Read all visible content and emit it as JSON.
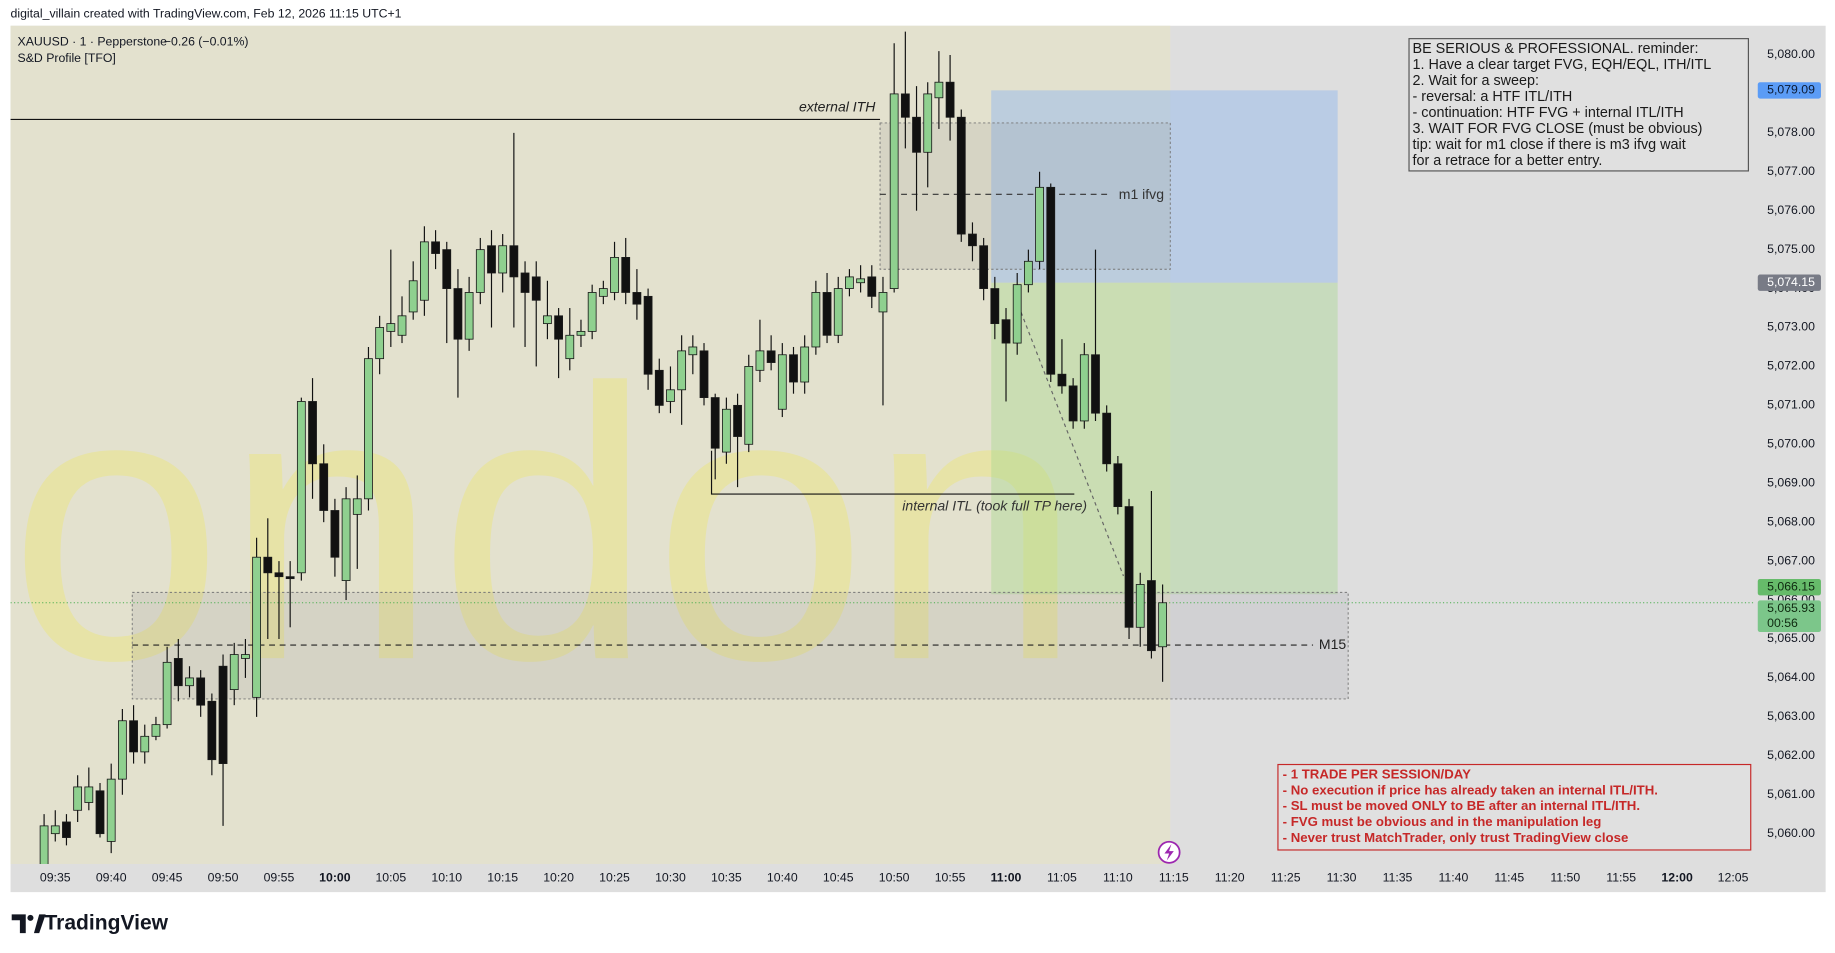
{
  "header": {
    "credit": "digital_villain created with TradingView.com, Feb 12, 2026 11:15 UTC+1",
    "brand": "TradingView"
  },
  "chart_data": {
    "type": "candlestick",
    "title": "XAUUSD · 1 · Pepperstone",
    "change": "−0.26 (−0.01%)",
    "indicator": "S&D Profile [TFO]",
    "watermark": "London",
    "up_color": "#8fd08f",
    "down_color": "#111111",
    "x": [
      "09:34",
      "09:35",
      "09:36",
      "09:37",
      "09:38",
      "09:39",
      "09:40",
      "09:41",
      "09:42",
      "09:43",
      "09:44",
      "09:45",
      "09:46",
      "09:47",
      "09:48",
      "09:49",
      "09:50",
      "09:51",
      "09:52",
      "09:53",
      "09:54",
      "09:55",
      "09:56",
      "09:57",
      "09:58",
      "09:59",
      "10:00",
      "10:01",
      "10:02",
      "10:03",
      "10:04",
      "10:05",
      "10:06",
      "10:07",
      "10:08",
      "10:09",
      "10:10",
      "10:11",
      "10:12",
      "10:13",
      "10:14",
      "10:15",
      "10:16",
      "10:17",
      "10:18",
      "10:19",
      "10:20",
      "10:21",
      "10:22",
      "10:23",
      "10:24",
      "10:25",
      "10:26",
      "10:27",
      "10:28",
      "10:29",
      "10:30",
      "10:31",
      "10:32",
      "10:33",
      "10:34",
      "10:35",
      "10:36",
      "10:37",
      "10:38",
      "10:39",
      "10:40",
      "10:41",
      "10:42",
      "10:43",
      "10:44",
      "10:45",
      "10:46",
      "10:47",
      "10:48",
      "10:49",
      "10:50",
      "10:51",
      "10:52",
      "10:53",
      "10:54",
      "10:55",
      "10:56",
      "10:57",
      "10:58",
      "10:59",
      "11:00",
      "11:01",
      "11:02",
      "11:03",
      "11:04",
      "11:05",
      "11:06",
      "11:07",
      "11:08",
      "11:09",
      "11:10",
      "11:11",
      "11:12",
      "11:13",
      "11:14"
    ],
    "open": [
      5059.2,
      5060.0,
      5060.3,
      5060.6,
      5060.8,
      5061.1,
      5059.8,
      5061.4,
      5062.9,
      5062.1,
      5062.5,
      5062.8,
      5064.5,
      5063.8,
      5064.0,
      5063.4,
      5064.3,
      5063.7,
      5064.5,
      5063.5,
      5067.1,
      5066.7,
      5066.6,
      5066.7,
      5071.1,
      5069.5,
      5068.3,
      5066.5,
      5068.2,
      5068.6,
      5072.2,
      5072.9,
      5072.8,
      5073.4,
      5073.7,
      5075.2,
      5075.0,
      5074.0,
      5072.7,
      5073.9,
      5075.1,
      5074.4,
      5075.1,
      5074.4,
      5074.3,
      5073.1,
      5073.3,
      5072.2,
      5072.8,
      5072.9,
      5073.8,
      5073.9,
      5074.8,
      5073.9,
      5073.8,
      5071.9,
      5071.1,
      5071.4,
      5072.3,
      5072.4,
      5071.2,
      5069.8,
      5071.0,
      5070.0,
      5071.9,
      5072.4,
      5070.9,
      5072.3,
      5071.6,
      5072.5,
      5073.9,
      5072.8,
      5074.0,
      5074.15,
      5074.3,
      5073.4,
      5074.0,
      5079.0,
      5078.4,
      5077.5,
      5078.9,
      5079.3,
      5078.4,
      5075.4,
      5075.1,
      5074.0,
      5073.2,
      5072.6,
      5074.1,
      5074.7,
      5076.6,
      5071.8,
      5071.5,
      5070.6,
      5072.3,
      5070.8,
      5069.5,
      5068.4,
      5065.3,
      5066.5,
      5064.8
    ],
    "high": [
      5060.5,
      5060.6,
      5060.5,
      5061.5,
      5061.7,
      5061.3,
      5061.8,
      5063.2,
      5063.3,
      5062.8,
      5063.0,
      5064.8,
      5065.0,
      5064.3,
      5064.2,
      5063.6,
      5064.6,
      5064.9,
      5065.0,
      5067.6,
      5068.1,
      5067.0,
      5067.0,
      5071.2,
      5071.7,
      5070.0,
      5068.6,
      5068.9,
      5069.2,
      5072.5,
      5073.3,
      5075.0,
      5073.8,
      5074.7,
      5075.6,
      5075.5,
      5075.2,
      5074.5,
      5074.3,
      5075.3,
      5075.5,
      5075.4,
      5078.0,
      5074.7,
      5074.7,
      5074.2,
      5073.5,
      5073.5,
      5073.2,
      5074.1,
      5074.2,
      5075.2,
      5075.3,
      5074.5,
      5074.0,
      5072.2,
      5072.0,
      5072.8,
      5072.8,
      5072.6,
      5071.3,
      5071.2,
      5071.3,
      5072.3,
      5073.2,
      5072.8,
      5072.6,
      5072.5,
      5072.8,
      5074.2,
      5074.4,
      5074.3,
      5074.5,
      5074.6,
      5074.6,
      5074.3,
      5080.3,
      5080.6,
      5079.2,
      5079.3,
      5080.1,
      5080.0,
      5078.6,
      5075.7,
      5075.3,
      5074.3,
      5073.5,
      5074.4,
      5075.0,
      5077.0,
      5076.7,
      5072.7,
      5071.7,
      5072.6,
      5075.0,
      5071.0,
      5069.7,
      5068.6,
      5066.7,
      5068.8,
      5066.4
    ],
    "low": [
      5059.0,
      5059.8,
      5059.7,
      5060.3,
      5060.6,
      5059.9,
      5059.5,
      5061.0,
      5061.8,
      5061.8,
      5062.4,
      5062.7,
      5063.4,
      5063.5,
      5063.0,
      5061.5,
      5060.2,
      5063.3,
      5064.0,
      5063.0,
      5065.0,
      5065.0,
      5065.3,
      5066.5,
      5068.6,
      5068.0,
      5066.6,
      5066.0,
      5066.8,
      5068.3,
      5071.8,
      5072.5,
      5072.6,
      5073.2,
      5073.3,
      5074.5,
      5072.6,
      5071.2,
      5072.4,
      5073.6,
      5073.0,
      5073.9,
      5073.0,
      5072.5,
      5072.0,
      5072.7,
      5071.7,
      5071.9,
      5072.5,
      5072.7,
      5073.6,
      5073.7,
      5073.6,
      5073.2,
      5071.4,
      5070.8,
      5070.8,
      5070.5,
      5071.8,
      5071.0,
      5069.1,
      5069.5,
      5068.9,
      5069.8,
      5071.6,
      5071.9,
      5070.7,
      5071.3,
      5071.3,
      5072.3,
      5072.6,
      5072.6,
      5073.8,
      5073.9,
      5073.5,
      5071.0,
      5073.9,
      5077.6,
      5076.0,
      5076.6,
      5078.1,
      5077.8,
      5075.2,
      5074.7,
      5073.7,
      5072.7,
      5071.1,
      5072.3,
      5073.9,
      5074.5,
      5071.6,
      5071.3,
      5070.4,
      5070.4,
      5070.6,
      5069.3,
      5068.2,
      5065.0,
      5064.8,
      5064.5,
      5063.9
    ],
    "close": [
      5060.2,
      5060.2,
      5059.9,
      5061.2,
      5061.2,
      5060.0,
      5061.4,
      5062.9,
      5062.1,
      5062.5,
      5062.8,
      5064.4,
      5063.8,
      5064.0,
      5063.3,
      5061.9,
      5061.8,
      5064.6,
      5064.6,
      5067.1,
      5066.7,
      5066.6,
      5066.55,
      5071.1,
      5069.5,
      5068.3,
      5067.1,
      5068.6,
      5068.6,
      5072.2,
      5073.0,
      5073.1,
      5073.3,
      5074.2,
      5075.2,
      5074.9,
      5074.0,
      5072.7,
      5073.9,
      5075.0,
      5074.4,
      5075.1,
      5074.3,
      5073.9,
      5073.7,
      5073.3,
      5072.7,
      5072.8,
      5072.9,
      5073.9,
      5074.0,
      5074.8,
      5073.9,
      5073.6,
      5071.8,
      5071.0,
      5071.4,
      5072.4,
      5072.5,
      5071.2,
      5069.9,
      5070.9,
      5070.2,
      5072.0,
      5072.4,
      5072.1,
      5072.3,
      5071.6,
      5072.5,
      5073.9,
      5072.8,
      5074.0,
      5074.3,
      5074.25,
      5073.8,
      5073.9,
      5079.0,
      5078.4,
      5077.5,
      5079.0,
      5079.3,
      5078.4,
      5075.4,
      5075.1,
      5074.0,
      5073.1,
      5072.6,
      5074.1,
      5074.7,
      5076.6,
      5071.8,
      5071.5,
      5070.6,
      5072.3,
      5070.8,
      5069.5,
      5068.4,
      5065.3,
      5066.4,
      5064.7,
      5065.93
    ],
    "xlim": [
      "09:31",
      "12:07"
    ],
    "xticks": [
      "09:35",
      "09:40",
      "09:45",
      "09:50",
      "09:55",
      "10:00",
      "10:05",
      "10:10",
      "10:15",
      "10:20",
      "10:25",
      "10:30",
      "10:35",
      "10:40",
      "10:45",
      "10:50",
      "10:55",
      "11:00",
      "11:05",
      "11:10",
      "11:15",
      "11:20",
      "11:25",
      "11:30",
      "11:35",
      "11:40",
      "11:45",
      "11:50",
      "11:55",
      "12:00",
      "12:05"
    ],
    "ylim": [
      5059.22,
      5080.75
    ],
    "yticks": [
      {
        "value": 5060,
        "label": "5,060.00"
      },
      {
        "value": 5061,
        "label": "5,061.00"
      },
      {
        "value": 5062,
        "label": "5,062.00"
      },
      {
        "value": 5063,
        "label": "5,063.00"
      },
      {
        "value": 5064,
        "label": "5,064.00"
      },
      {
        "value": 5065,
        "label": "5,065.00"
      },
      {
        "value": 5066,
        "label": "5,066.00"
      },
      {
        "value": 5067,
        "label": "5,067.00"
      },
      {
        "value": 5068,
        "label": "5,068.00"
      },
      {
        "value": 5069,
        "label": "5,069.00"
      },
      {
        "value": 5070,
        "label": "5,070.00"
      },
      {
        "value": 5071,
        "label": "5,071.00"
      },
      {
        "value": 5072,
        "label": "5,072.00"
      },
      {
        "value": 5073,
        "label": "5,073.00"
      },
      {
        "value": 5074,
        "label": "5,074.00"
      },
      {
        "value": 5075,
        "label": "5,075.00"
      },
      {
        "value": 5076,
        "label": "5,076.00"
      },
      {
        "value": 5077,
        "label": "5,077.00"
      },
      {
        "value": 5078,
        "label": "5,078.00"
      },
      {
        "value": 5079,
        "label": "5,079.00"
      },
      {
        "value": 5080,
        "label": "5,080.00"
      }
    ],
    "price_labels": [
      {
        "value": 5079.09,
        "label": "5,079.09",
        "color": "#5b9cf6",
        "text_color": "#0b1a33"
      },
      {
        "value": 5074.15,
        "label": "5,074.15",
        "color": "#787b86",
        "text_color": "#ffffff"
      },
      {
        "value": 5066.15,
        "label": "5,066.15",
        "color": "#66bb6a",
        "text_color": "#0f2a10"
      },
      {
        "value": 5065.93,
        "label": "5,065.93",
        "color": "#7cc68a",
        "text_color": "#0f2a10"
      }
    ],
    "countdown": "00:56",
    "annotations": [
      "external ITH",
      "m1 ifvg",
      "internal ITL (took full TP here)",
      "M15"
    ]
  },
  "notes": {
    "reminder": [
      "BE SERIOUS & PROFESSIONAL. reminder:",
      "1. Have a clear target FVG, EQH/EQL, ITH/ITL",
      "2. Wait for a sweep:",
      "- reversal: a HTF ITL/ITH",
      "- continuation: HTF FVG + internal ITL/ITH",
      "3. WAIT FOR FVG CLOSE (must be obvious)",
      "tip: wait for m1 close if there is m3 ifvg wait",
      "for a retrace for a better entry."
    ],
    "rules": [
      "- 1 TRADE PER SESSION/DAY",
      "- No execution if price has already taken an internal ITL/ITH.",
      "- SL must be moved ONLY to BE after an internal ITL/ITH.",
      "- FVG must be obvious and in the manipulation leg",
      "- Never trust MatchTrader, only trust TradingView close"
    ]
  }
}
